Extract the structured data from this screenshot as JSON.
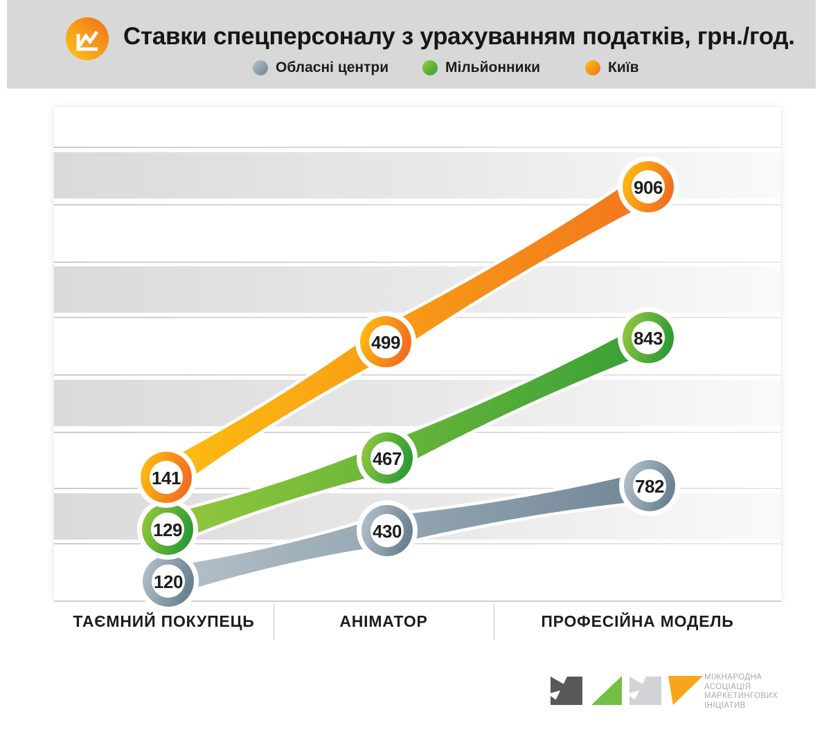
{
  "header": {
    "title": "Ставки спецперсоналу з урахуванням податків, грн./год.",
    "legend": [
      {
        "label": "Обласні центри",
        "color_light": "#b9c6ce",
        "color_dark": "#6b8292"
      },
      {
        "label": "Мільйонники",
        "color_light": "#9ccb3e",
        "color_dark": "#2f9c35"
      },
      {
        "label": "Київ",
        "color_light": "#fdc40f",
        "color_dark": "#f26f1f"
      }
    ]
  },
  "chart_data": {
    "type": "line",
    "title": "Ставки спецперсоналу з урахуванням податків, грн./год.",
    "unit": "грн./год.",
    "categories": [
      "ТАЄМНИЙ ПОКУПЕЦЬ",
      "АНІМАТОР",
      "ПРОФЕСІЙНА МОДЕЛЬ"
    ],
    "series": [
      {
        "name": "Обласні центри",
        "values": [
          120,
          430,
          782
        ],
        "color_light": "#b9c6ce",
        "color_dark": "#6b8292"
      },
      {
        "name": "Мільйонники",
        "values": [
          129,
          467,
          843
        ],
        "color_light": "#9ccb3e",
        "color_dark": "#2f9c35"
      },
      {
        "name": "Київ",
        "values": [
          141,
          499,
          906
        ],
        "color_light": "#fdc40f",
        "color_dark": "#f26f1f"
      }
    ],
    "legend_position": "top",
    "grid": "horizontal-bands"
  },
  "footer": {
    "org_name_lines": [
      "МІЖНАРОДНА",
      "АСОЦІАЦІЯ",
      "МАРКЕТИНГОВИХ",
      "ІНІЦІАТИВ"
    ]
  }
}
